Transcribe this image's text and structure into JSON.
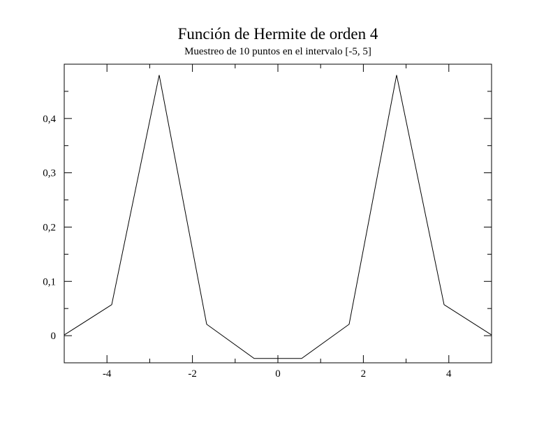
{
  "chart_data": {
    "type": "line",
    "title": "Función de Hermite de orden 4",
    "subtitle": "Muestreo de 10 puntos en el intervalo [-5, 5]",
    "xlabel": "",
    "ylabel": "",
    "xlim": [
      -5,
      5
    ],
    "ylim": [
      -0.05,
      0.5
    ],
    "xticks": [
      -4,
      -2,
      0,
      2,
      4
    ],
    "xtick_labels": [
      "-4",
      "-2",
      "0",
      "2",
      "4"
    ],
    "x_minor_ticks": [
      -3,
      -1,
      1,
      3
    ],
    "yticks": [
      0,
      0.1,
      0.2,
      0.3,
      0.4
    ],
    "ytick_labels": [
      "0",
      "0,1",
      "0,2",
      "0,3",
      "0,4"
    ],
    "y_minor_ticks": [
      -0.05,
      0.05,
      0.15,
      0.25,
      0.35,
      0.45
    ],
    "grid": false,
    "line_color": "#000000",
    "series": [
      {
        "x": [
          -5.0,
          -3.889,
          -2.778,
          -1.667,
          -0.556,
          0.556,
          1.667,
          2.778,
          3.889,
          5.0
        ],
        "values": [
          0.0013,
          0.057,
          0.48,
          0.021,
          -0.042,
          -0.042,
          0.021,
          0.48,
          0.057,
          0.0013
        ]
      }
    ]
  }
}
